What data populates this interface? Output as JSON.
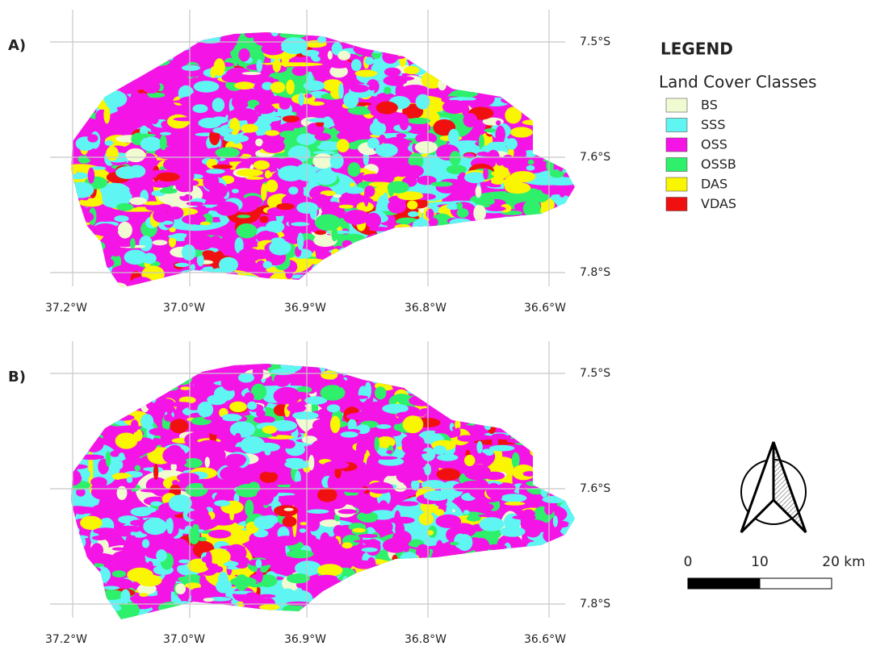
{
  "panels": [
    {
      "label": "A)",
      "x_ticks": [
        "37.2°W",
        "37.0°W",
        "36.9°W",
        "36.8°W",
        "36.6°W"
      ],
      "y_ticks": [
        "7.5°S",
        "7.6°S",
        "7.8°S"
      ]
    },
    {
      "label": "B)",
      "x_ticks": [
        "37.2°W",
        "37.0°W",
        "36.9°W",
        "36.8°W",
        "36.6°W"
      ],
      "y_ticks": [
        "7.5°S",
        "7.6°S",
        "7.8°S"
      ]
    }
  ],
  "legend": {
    "title": "LEGEND",
    "subtitle": "Land Cover Classes",
    "items": [
      {
        "label": "BS",
        "color": "#f0fbd2"
      },
      {
        "label": "SSS",
        "color": "#5ef5f2"
      },
      {
        "label": "OSS",
        "color": "#f514e6"
      },
      {
        "label": "OSSB",
        "color": "#2ef06a"
      },
      {
        "label": "DAS",
        "color": "#faf500"
      },
      {
        "label": "VDAS",
        "color": "#f01010"
      }
    ]
  },
  "scale_bar": {
    "labels": [
      "0",
      "10",
      "20 km"
    ]
  }
}
